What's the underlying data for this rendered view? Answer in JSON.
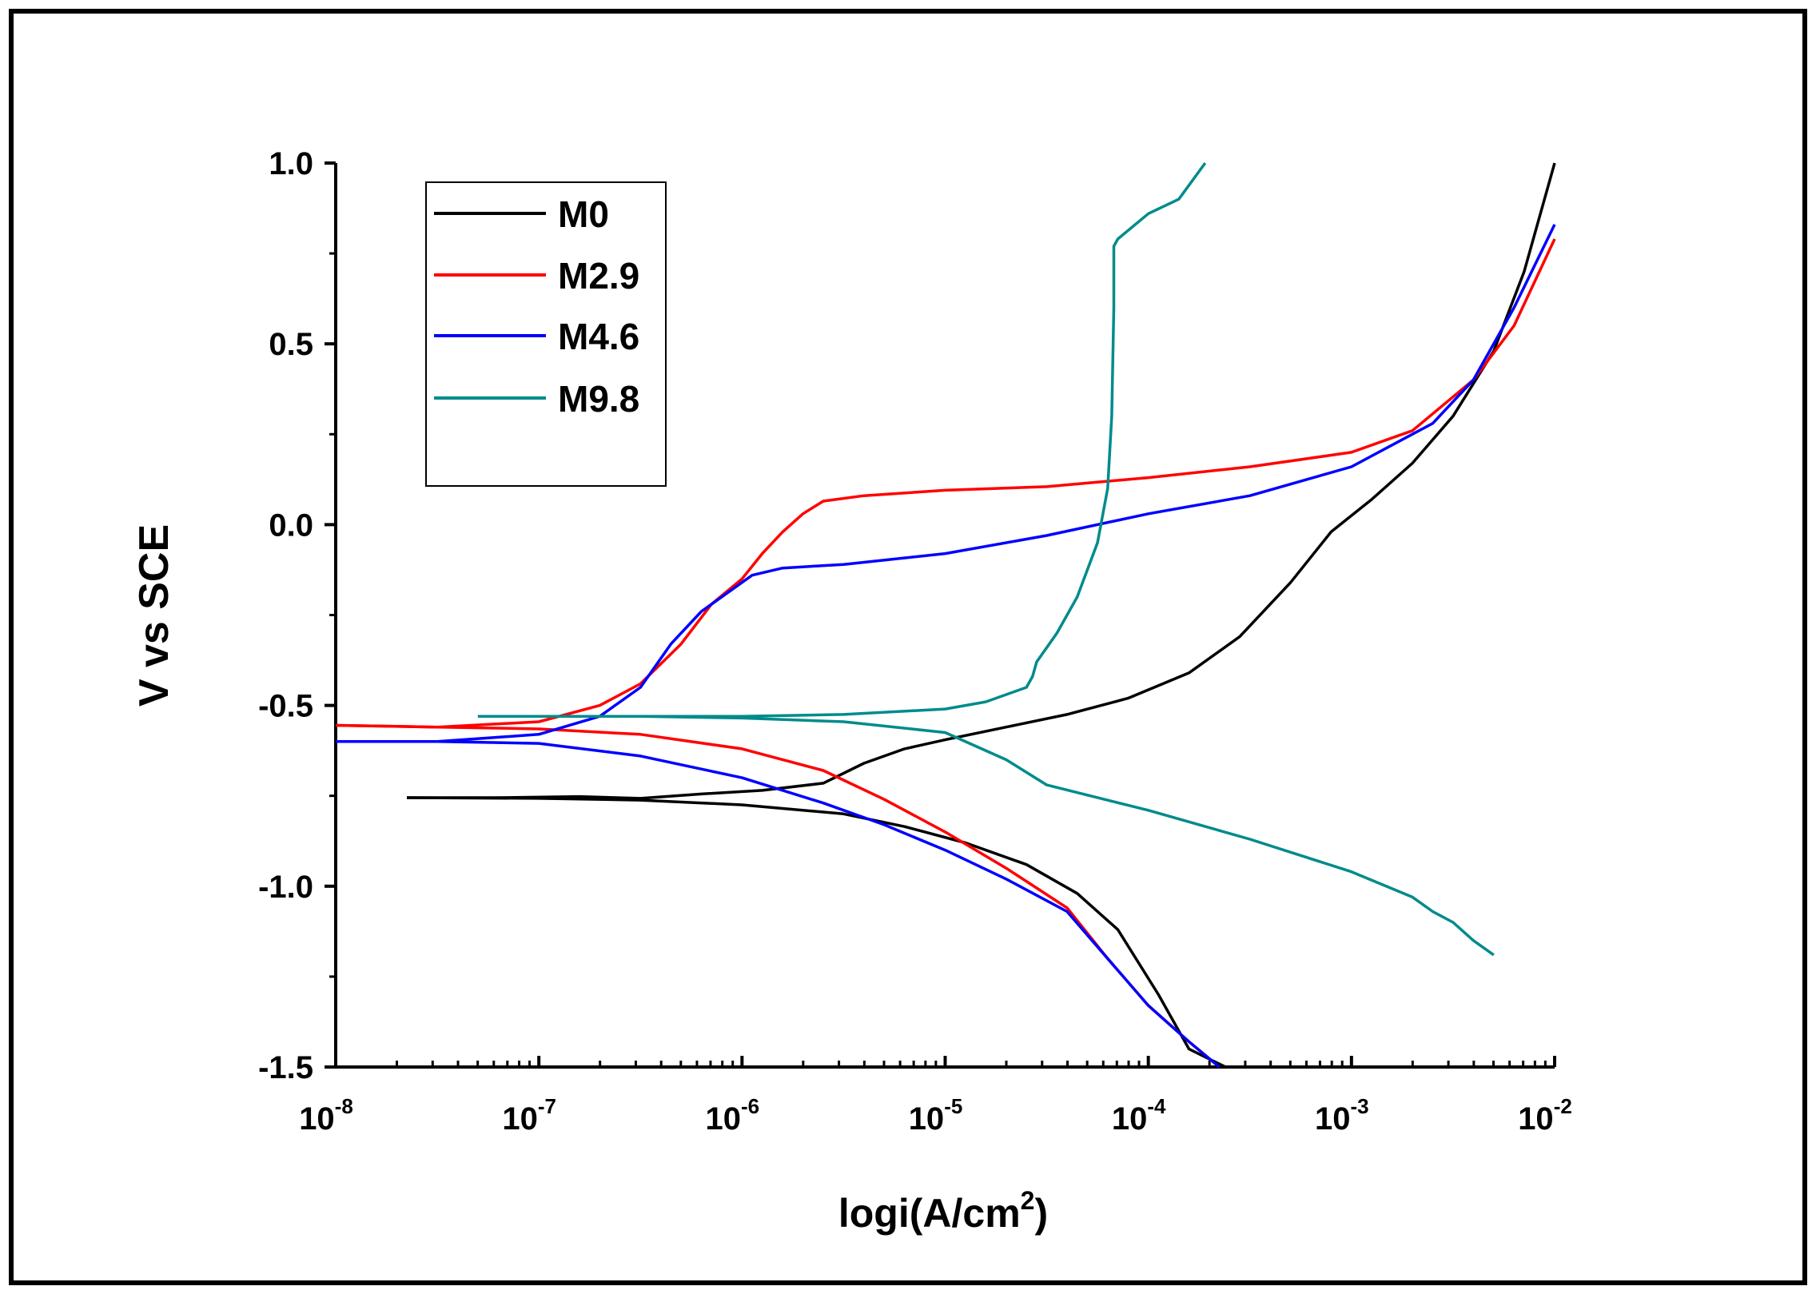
{
  "chart_data": {
    "type": "line",
    "title": "",
    "xlabel": "logi(A/cm",
    "xlabel_sup": "2",
    "xlabel_close": ")",
    "ylabel": "V vs SCE",
    "xscale": "log",
    "xlim": [
      -8,
      -2
    ],
    "ylim": [
      -1.5,
      1.0
    ],
    "x_ticks": [
      {
        "base": "10",
        "exp": "-8",
        "log": -8
      },
      {
        "base": "10",
        "exp": "-7",
        "log": -7
      },
      {
        "base": "10",
        "exp": "-6",
        "log": -6
      },
      {
        "base": "10",
        "exp": "-5",
        "log": -5
      },
      {
        "base": "10",
        "exp": "-4",
        "log": -4
      },
      {
        "base": "10",
        "exp": "-3",
        "log": -3
      },
      {
        "base": "10",
        "exp": "-2",
        "log": -2
      }
    ],
    "y_ticks": [
      {
        "label": "1.0",
        "value": 1.0
      },
      {
        "label": "0.5",
        "value": 0.5
      },
      {
        "label": "0.0",
        "value": 0.0
      },
      {
        "label": "-0.5",
        "value": -0.5
      },
      {
        "label": "-1.0",
        "value": -1.0
      },
      {
        "label": "-1.5",
        "value": -1.5
      }
    ],
    "legend_position": "top-left",
    "series": [
      {
        "name": "M0",
        "color": "#000000",
        "points": [
          [
            -7.65,
            -0.755
          ],
          [
            -7.2,
            -0.755
          ],
          [
            -6.8,
            -0.752
          ],
          [
            -6.5,
            -0.757
          ],
          [
            -6.2,
            -0.745
          ],
          [
            -5.9,
            -0.735
          ],
          [
            -5.6,
            -0.715
          ],
          [
            -5.4,
            -0.66
          ],
          [
            -5.2,
            -0.62
          ],
          [
            -5.0,
            -0.595
          ],
          [
            -4.7,
            -0.56
          ],
          [
            -4.4,
            -0.525
          ],
          [
            -4.1,
            -0.48
          ],
          [
            -3.8,
            -0.41
          ],
          [
            -3.55,
            -0.31
          ],
          [
            -3.3,
            -0.16
          ],
          [
            -3.1,
            -0.02
          ],
          [
            -2.9,
            0.07
          ],
          [
            -2.7,
            0.17
          ],
          [
            -2.5,
            0.3
          ],
          [
            -2.3,
            0.48
          ],
          [
            -2.15,
            0.7
          ],
          [
            -2.0,
            1.0
          ],
          [
            -2.0,
            1.0
          ],
          [
            -7.65,
            -0.755
          ],
          [
            -7.0,
            -0.757
          ],
          [
            -6.5,
            -0.762
          ],
          [
            -6.0,
            -0.775
          ],
          [
            -5.5,
            -0.8
          ],
          [
            -5.2,
            -0.835
          ],
          [
            -4.9,
            -0.88
          ],
          [
            -4.6,
            -0.94
          ],
          [
            -4.35,
            -1.02
          ],
          [
            -4.15,
            -1.12
          ],
          [
            -3.95,
            -1.3
          ],
          [
            -3.8,
            -1.45
          ],
          [
            -3.62,
            -1.5
          ]
        ],
        "segments": [
          [
            [
              -7.65,
              -0.755
            ],
            [
              -7.2,
              -0.755
            ],
            [
              -6.8,
              -0.752
            ],
            [
              -6.5,
              -0.757
            ],
            [
              -6.2,
              -0.745
            ],
            [
              -5.9,
              -0.735
            ],
            [
              -5.6,
              -0.715
            ],
            [
              -5.4,
              -0.66
            ],
            [
              -5.2,
              -0.62
            ],
            [
              -5.0,
              -0.595
            ],
            [
              -4.7,
              -0.56
            ],
            [
              -4.4,
              -0.525
            ],
            [
              -4.1,
              -0.48
            ],
            [
              -3.8,
              -0.41
            ],
            [
              -3.55,
              -0.31
            ],
            [
              -3.3,
              -0.16
            ],
            [
              -3.1,
              -0.02
            ],
            [
              -2.9,
              0.07
            ],
            [
              -2.7,
              0.17
            ],
            [
              -2.5,
              0.3
            ],
            [
              -2.3,
              0.48
            ],
            [
              -2.15,
              0.7
            ],
            [
              -2.0,
              1.0
            ]
          ],
          [
            [
              -7.65,
              -0.755
            ],
            [
              -7.0,
              -0.757
            ],
            [
              -6.5,
              -0.762
            ],
            [
              -6.0,
              -0.775
            ],
            [
              -5.5,
              -0.8
            ],
            [
              -5.2,
              -0.835
            ],
            [
              -4.9,
              -0.88
            ],
            [
              -4.6,
              -0.94
            ],
            [
              -4.35,
              -1.02
            ],
            [
              -4.15,
              -1.12
            ],
            [
              -3.95,
              -1.3
            ],
            [
              -3.8,
              -1.45
            ],
            [
              -3.62,
              -1.5
            ]
          ]
        ]
      },
      {
        "name": "M2.9",
        "color": "#ff0000",
        "segments": [
          [
            [
              -8.0,
              -0.555
            ],
            [
              -7.5,
              -0.56
            ],
            [
              -7.0,
              -0.545
            ],
            [
              -6.7,
              -0.5
            ],
            [
              -6.5,
              -0.44
            ],
            [
              -6.3,
              -0.33
            ],
            [
              -6.15,
              -0.22
            ],
            [
              -6.0,
              -0.15
            ],
            [
              -5.9,
              -0.08
            ],
            [
              -5.8,
              -0.02
            ],
            [
              -5.7,
              0.03
            ],
            [
              -5.6,
              0.065
            ],
            [
              -5.4,
              0.08
            ],
            [
              -5.0,
              0.095
            ],
            [
              -4.5,
              0.105
            ],
            [
              -4.0,
              0.13
            ],
            [
              -3.5,
              0.16
            ],
            [
              -3.0,
              0.2
            ],
            [
              -2.7,
              0.26
            ],
            [
              -2.4,
              0.4
            ],
            [
              -2.2,
              0.55
            ],
            [
              -2.0,
              0.79
            ]
          ],
          [
            [
              -8.0,
              -0.555
            ],
            [
              -7.5,
              -0.56
            ],
            [
              -7.0,
              -0.565
            ],
            [
              -6.5,
              -0.58
            ],
            [
              -6.0,
              -0.62
            ],
            [
              -5.6,
              -0.68
            ],
            [
              -5.3,
              -0.76
            ],
            [
              -5.0,
              -0.85
            ],
            [
              -4.7,
              -0.95
            ],
            [
              -4.4,
              -1.06
            ],
            [
              -4.2,
              -1.2
            ],
            [
              -4.0,
              -1.33
            ],
            [
              -3.8,
              -1.43
            ],
            [
              -3.65,
              -1.5
            ]
          ]
        ]
      },
      {
        "name": "M4.6",
        "color": "#0000ff",
        "segments": [
          [
            [
              -8.0,
              -0.6
            ],
            [
              -7.5,
              -0.6
            ],
            [
              -7.0,
              -0.58
            ],
            [
              -6.7,
              -0.53
            ],
            [
              -6.5,
              -0.45
            ],
            [
              -6.35,
              -0.33
            ],
            [
              -6.2,
              -0.24
            ],
            [
              -6.05,
              -0.18
            ],
            [
              -5.95,
              -0.14
            ],
            [
              -5.8,
              -0.12
            ],
            [
              -5.5,
              -0.11
            ],
            [
              -5.0,
              -0.08
            ],
            [
              -4.5,
              -0.03
            ],
            [
              -4.0,
              0.03
            ],
            [
              -3.5,
              0.08
            ],
            [
              -3.0,
              0.16
            ],
            [
              -2.6,
              0.28
            ],
            [
              -2.4,
              0.4
            ],
            [
              -2.2,
              0.6
            ],
            [
              -2.0,
              0.83
            ]
          ],
          [
            [
              -8.0,
              -0.6
            ],
            [
              -7.5,
              -0.6
            ],
            [
              -7.0,
              -0.605
            ],
            [
              -6.5,
              -0.64
            ],
            [
              -6.0,
              -0.7
            ],
            [
              -5.6,
              -0.77
            ],
            [
              -5.3,
              -0.83
            ],
            [
              -5.0,
              -0.9
            ],
            [
              -4.7,
              -0.98
            ],
            [
              -4.4,
              -1.07
            ],
            [
              -4.2,
              -1.2
            ],
            [
              -4.0,
              -1.33
            ],
            [
              -3.8,
              -1.43
            ],
            [
              -3.65,
              -1.5
            ]
          ]
        ]
      },
      {
        "name": "M9.8",
        "color": "#008b8b",
        "segments": [
          [
            [
              -7.3,
              -0.53
            ],
            [
              -7.0,
              -0.53
            ],
            [
              -6.5,
              -0.53
            ],
            [
              -6.0,
              -0.53
            ],
            [
              -5.5,
              -0.525
            ],
            [
              -5.0,
              -0.51
            ],
            [
              -4.8,
              -0.49
            ],
            [
              -4.6,
              -0.45
            ],
            [
              -4.57,
              -0.42
            ],
            [
              -4.55,
              -0.38
            ],
            [
              -4.45,
              -0.3
            ],
            [
              -4.35,
              -0.2
            ],
            [
              -4.25,
              -0.05
            ],
            [
              -4.2,
              0.1
            ],
            [
              -4.18,
              0.3
            ],
            [
              -4.17,
              0.6
            ],
            [
              -4.17,
              0.77
            ],
            [
              -4.15,
              0.79
            ],
            [
              -4.0,
              0.86
            ],
            [
              -3.85,
              0.9
            ],
            [
              -3.72,
              1.0
            ]
          ],
          [
            [
              -7.3,
              -0.53
            ],
            [
              -6.5,
              -0.53
            ],
            [
              -6.0,
              -0.535
            ],
            [
              -5.5,
              -0.545
            ],
            [
              -5.0,
              -0.575
            ],
            [
              -4.7,
              -0.65
            ],
            [
              -4.5,
              -0.72
            ],
            [
              -4.0,
              -0.79
            ],
            [
              -3.5,
              -0.87
            ],
            [
              -3.0,
              -0.96
            ],
            [
              -2.7,
              -1.03
            ],
            [
              -2.6,
              -1.07
            ],
            [
              -2.5,
              -1.1
            ],
            [
              -2.4,
              -1.15
            ],
            [
              -2.3,
              -1.19
            ]
          ]
        ]
      }
    ]
  }
}
